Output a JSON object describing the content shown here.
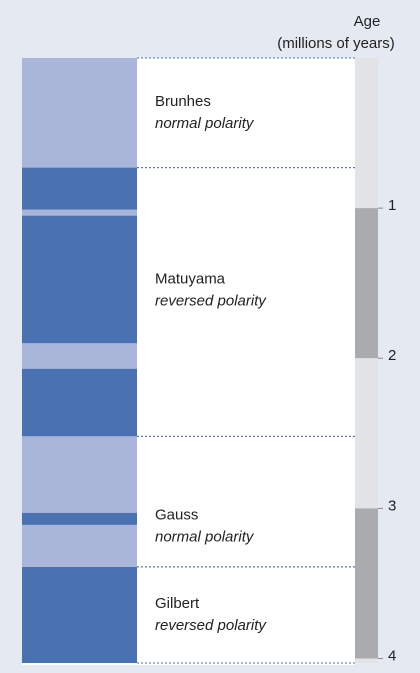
{
  "header": {
    "title": "Age",
    "subtitle": "(millions of years)"
  },
  "age_range": [
    0,
    4.03
  ],
  "age_ticks": [
    1,
    2,
    3,
    4
  ],
  "normal_color": "#a9b6da",
  "reversed_color": "#4a72b3",
  "normal_stripes": [
    [
      0,
      0.73
    ],
    [
      1.01,
      1.05
    ],
    [
      1.9,
      2.07
    ],
    [
      2.52,
      3.03
    ],
    [
      3.11,
      3.39
    ]
  ],
  "reversed_stripes": [
    [
      0.73,
      1.01
    ],
    [
      1.05,
      1.9
    ],
    [
      2.07,
      2.52
    ],
    [
      3.03,
      3.11
    ],
    [
      3.39,
      4.03
    ]
  ],
  "epochs": [
    {
      "name": "Brunhes",
      "polarity": "normal polarity",
      "start": 0,
      "end": 0.73
    },
    {
      "name": "Matuyama",
      "polarity": "reversed polarity",
      "start": 0.73,
      "end": 2.52
    },
    {
      "name": "Gauss",
      "polarity": "normal polarity",
      "start": 2.52,
      "end": 3.39
    },
    {
      "name": "Gilbert",
      "polarity": "reversed polarity",
      "start": 3.39,
      "end": 4.03
    }
  ]
}
